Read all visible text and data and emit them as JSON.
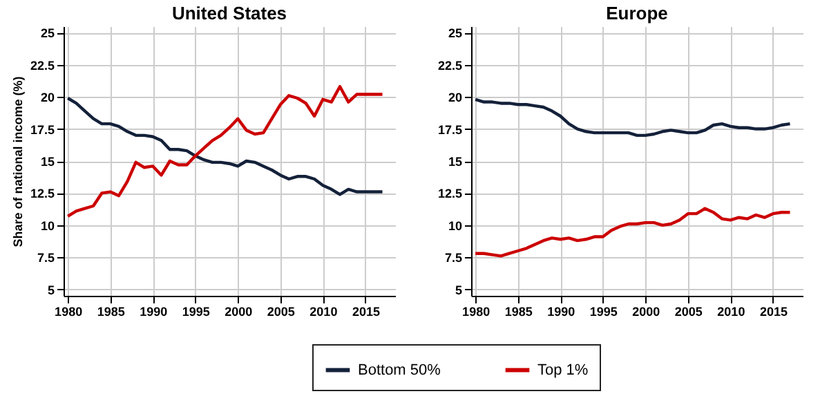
{
  "chart_data": [
    {
      "type": "line",
      "title": "United States",
      "ylabel": "Share of national income (%)",
      "x": [
        1980,
        1981,
        1982,
        1983,
        1984,
        1985,
        1986,
        1987,
        1988,
        1989,
        1990,
        1991,
        1992,
        1993,
        1994,
        1995,
        1996,
        1997,
        1998,
        1999,
        2000,
        2001,
        2002,
        2003,
        2004,
        2005,
        2006,
        2007,
        2008,
        2009,
        2010,
        2011,
        2012,
        2013,
        2014,
        2015,
        2016,
        2017
      ],
      "series": [
        {
          "name": "Bottom 50%",
          "color": "#14213a",
          "values": [
            19.9,
            19.5,
            18.9,
            18.3,
            17.9,
            17.9,
            17.7,
            17.3,
            17.0,
            17.0,
            16.9,
            16.6,
            15.9,
            15.9,
            15.8,
            15.4,
            15.1,
            14.9,
            14.9,
            14.8,
            14.6,
            15.0,
            14.9,
            14.6,
            14.3,
            13.9,
            13.6,
            13.8,
            13.8,
            13.6,
            13.1,
            12.8,
            12.4,
            12.8,
            12.6,
            12.6,
            12.6,
            12.6
          ]
        },
        {
          "name": "Top 1%",
          "color": "#cc0000",
          "values": [
            10.7,
            11.1,
            11.3,
            11.5,
            12.5,
            12.6,
            12.3,
            13.4,
            14.9,
            14.5,
            14.6,
            13.9,
            15.0,
            14.7,
            14.7,
            15.4,
            16.0,
            16.6,
            17.0,
            17.6,
            18.3,
            17.4,
            17.1,
            17.2,
            18.3,
            19.4,
            20.1,
            19.9,
            19.5,
            18.5,
            19.8,
            19.6,
            20.8,
            19.6,
            20.2,
            20.2,
            20.2,
            20.2
          ]
        }
      ],
      "xlim": [
        1979.5,
        2018.5
      ],
      "xticks": [
        1980,
        1985,
        1990,
        1995,
        2000,
        2005,
        2010,
        2015
      ],
      "ylim": [
        4.5,
        25.5
      ],
      "yticks": [
        5,
        7.5,
        10,
        12.5,
        15,
        17.5,
        20,
        22.5,
        25
      ],
      "grid": true,
      "legend": "bottom"
    },
    {
      "type": "line",
      "title": "Europe",
      "x": [
        1980,
        1981,
        1982,
        1983,
        1984,
        1985,
        1986,
        1987,
        1988,
        1989,
        1990,
        1991,
        1992,
        1993,
        1994,
        1995,
        1996,
        1997,
        1998,
        1999,
        2000,
        2001,
        2002,
        2003,
        2004,
        2005,
        2006,
        2007,
        2008,
        2009,
        2010,
        2011,
        2012,
        2013,
        2014,
        2015,
        2016,
        2017
      ],
      "series": [
        {
          "name": "Bottom 50%",
          "color": "#14213a",
          "values": [
            19.8,
            19.6,
            19.6,
            19.5,
            19.5,
            19.4,
            19.4,
            19.3,
            19.2,
            18.9,
            18.5,
            17.9,
            17.5,
            17.3,
            17.2,
            17.2,
            17.2,
            17.2,
            17.2,
            17.0,
            17.0,
            17.1,
            17.3,
            17.4,
            17.3,
            17.2,
            17.2,
            17.4,
            17.8,
            17.9,
            17.7,
            17.6,
            17.6,
            17.5,
            17.5,
            17.6,
            17.8,
            17.9
          ]
        },
        {
          "name": "Top 1%",
          "color": "#cc0000",
          "values": [
            7.8,
            7.8,
            7.7,
            7.6,
            7.8,
            8.0,
            8.2,
            8.5,
            8.8,
            9.0,
            8.9,
            9.0,
            8.8,
            8.9,
            9.1,
            9.1,
            9.6,
            9.9,
            10.1,
            10.1,
            10.2,
            10.2,
            10.0,
            10.1,
            10.4,
            10.9,
            10.9,
            11.3,
            11.0,
            10.5,
            10.4,
            10.6,
            10.5,
            10.8,
            10.6,
            10.9,
            11.0,
            11.0
          ]
        }
      ],
      "xlim": [
        1979.5,
        2018.5
      ],
      "xticks": [
        1980,
        1985,
        1990,
        1995,
        2000,
        2005,
        2010,
        2015
      ],
      "ylim": [
        4.5,
        25.5
      ],
      "yticks": [
        5,
        7.5,
        10,
        12.5,
        15,
        17.5,
        20,
        22.5,
        25
      ],
      "grid": true,
      "legend": "bottom"
    }
  ]
}
